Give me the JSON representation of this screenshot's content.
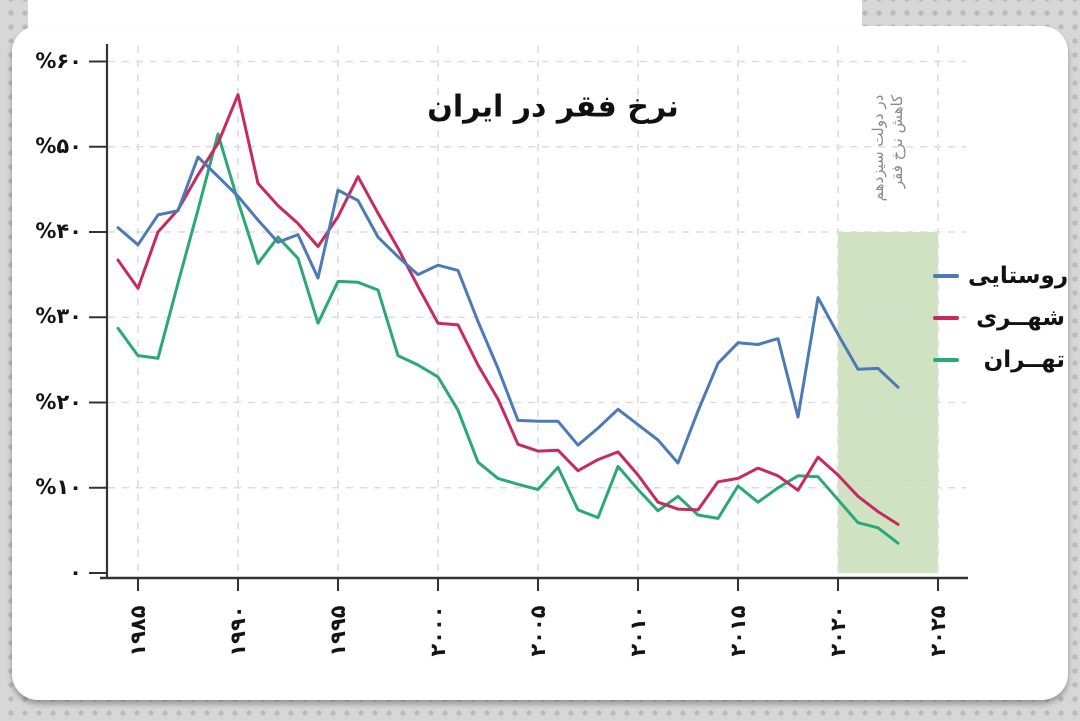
{
  "title": "نرخ فقر در ایران",
  "legend": {
    "items": [
      {
        "label": "روستایی",
        "color": "#4d7ab5"
      },
      {
        "label": "شهــری",
        "color": "#c72a5e"
      },
      {
        "label": "تهــران",
        "color": "#2aa878"
      }
    ]
  },
  "annotation": {
    "lines": [
      "کاهش نرخ فقر",
      "در دولت سیزدهم"
    ],
    "color": "#8a8a8a"
  },
  "colors": {
    "rural_line": "#4d7ab5",
    "urban_line": "#c72a5e",
    "tehran_line": "#2aa878",
    "highlight_region": "#cfe3c3",
    "gridline": "#dcdcdc",
    "axis": "#333333"
  },
  "axes": {
    "y_ticks": [
      {
        "value": 60,
        "label": "%۶۰"
      },
      {
        "value": 50,
        "label": "%۵۰"
      },
      {
        "value": 40,
        "label": "%۴۰"
      },
      {
        "value": 30,
        "label": "%۳۰"
      },
      {
        "value": 20,
        "label": "%۲۰"
      },
      {
        "value": 10,
        "label": "%۱۰"
      },
      {
        "value": 0,
        "label": "۰"
      }
    ],
    "x_ticks": [
      {
        "year": 1985,
        "label": "۱۹۸۵"
      },
      {
        "year": 1990,
        "label": "۱۹۹۰"
      },
      {
        "year": 1995,
        "label": "۱۹۹۵"
      },
      {
        "year": 2000,
        "label": "۲۰۰۰"
      },
      {
        "year": 2005,
        "label": "۲۰۰۵"
      },
      {
        "year": 2010,
        "label": "۲۰۱۰"
      },
      {
        "year": 2015,
        "label": "۲۰۱۵"
      },
      {
        "year": 2020,
        "label": "۲۰۲۰"
      },
      {
        "year": 2025,
        "label": "۲۰۲۵"
      }
    ]
  },
  "chart_data": {
    "type": "line",
    "title": "نرخ فقر در ایران",
    "xlabel": "",
    "ylabel": "",
    "ylim": [
      0,
      60
    ],
    "xlim": [
      1984,
      2025
    ],
    "grid": true,
    "legend_position": "right",
    "x": [
      1984,
      1985,
      1986,
      1987,
      1988,
      1989,
      1990,
      1991,
      1992,
      1993,
      1994,
      1995,
      1996,
      1997,
      1998,
      1999,
      2000,
      2001,
      2002,
      2003,
      2004,
      2005,
      2006,
      2007,
      2008,
      2009,
      2010,
      2011,
      2012,
      2013,
      2014,
      2015,
      2016,
      2017,
      2018,
      2019,
      2020,
      2021,
      2022,
      2023
    ],
    "series": [
      {
        "name": "روستایی",
        "color": "#4d7ab5",
        "values": [
          40.5,
          38.5,
          42,
          42.5,
          48.8,
          46.5,
          44.2,
          41.4,
          38.8,
          39.7,
          34.6,
          44.9,
          43.7,
          39.4,
          37.1,
          35,
          36.1,
          35.5,
          29.5,
          24,
          17.9,
          17.8,
          17.8,
          15,
          17,
          19.2,
          17.4,
          15.6,
          12.9,
          19,
          24.6,
          27,
          26.8,
          27.5,
          18.3,
          32.3,
          28,
          23.9,
          24,
          21.8
        ]
      },
      {
        "name": "شهری",
        "color": "#c72a5e",
        "values": [
          36.7,
          33.4,
          40,
          42.6,
          46.7,
          50.4,
          56.1,
          45.7,
          43.1,
          41,
          38.3,
          41.8,
          46.5,
          42.2,
          38.1,
          33.6,
          29.3,
          29.1,
          24.4,
          20.4,
          15.1,
          14.3,
          14.4,
          12,
          13.3,
          14.2,
          11.5,
          8.3,
          7.5,
          7.4,
          10.7,
          11.1,
          12.3,
          11.4,
          9.7,
          13.6,
          11.5,
          9,
          7.2,
          5.7
        ]
      },
      {
        "name": "تهران",
        "color": "#2aa878",
        "values": [
          28.7,
          25.5,
          25.2,
          34,
          42.6,
          51.5,
          43.6,
          36.3,
          39.4,
          36.9,
          29.3,
          34.2,
          34.1,
          33.2,
          25.5,
          24.4,
          23,
          19.1,
          13,
          11.1,
          10.4,
          9.8,
          12.4,
          7.4,
          6.5,
          12.5,
          9.8,
          7.3,
          9,
          6.8,
          6.4,
          10.2,
          8.3,
          10,
          11.4,
          11.3,
          8.6,
          5.9,
          5.3,
          3.5
        ]
      }
    ],
    "highlight_region": {
      "from_year": 2020,
      "to_year": 2025,
      "from_value": 0,
      "to_value": 40,
      "color": "#cfe3c3"
    }
  }
}
